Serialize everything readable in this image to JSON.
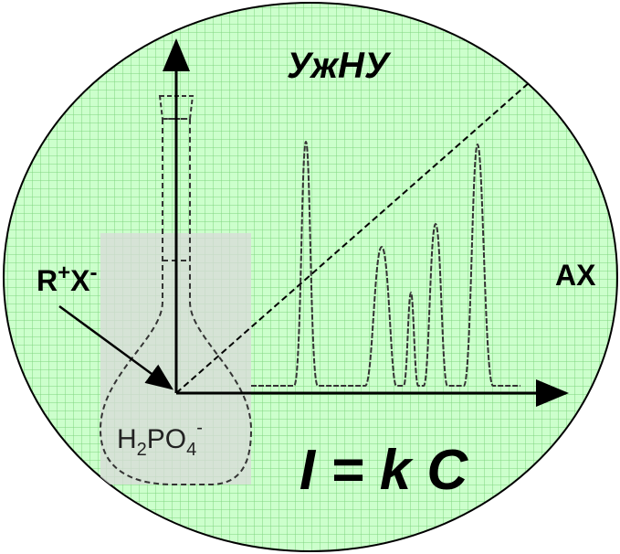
{
  "title": "УжНУ",
  "reagent": {
    "cation": "R",
    "cation_charge": "+",
    "anion": "X",
    "anion_charge": "-"
  },
  "axis_label": "AX",
  "analyte": {
    "h": "H",
    "h_count": "2",
    "po": "PO",
    "o_count": "4",
    "charge": "-"
  },
  "equation": "I = k C"
}
